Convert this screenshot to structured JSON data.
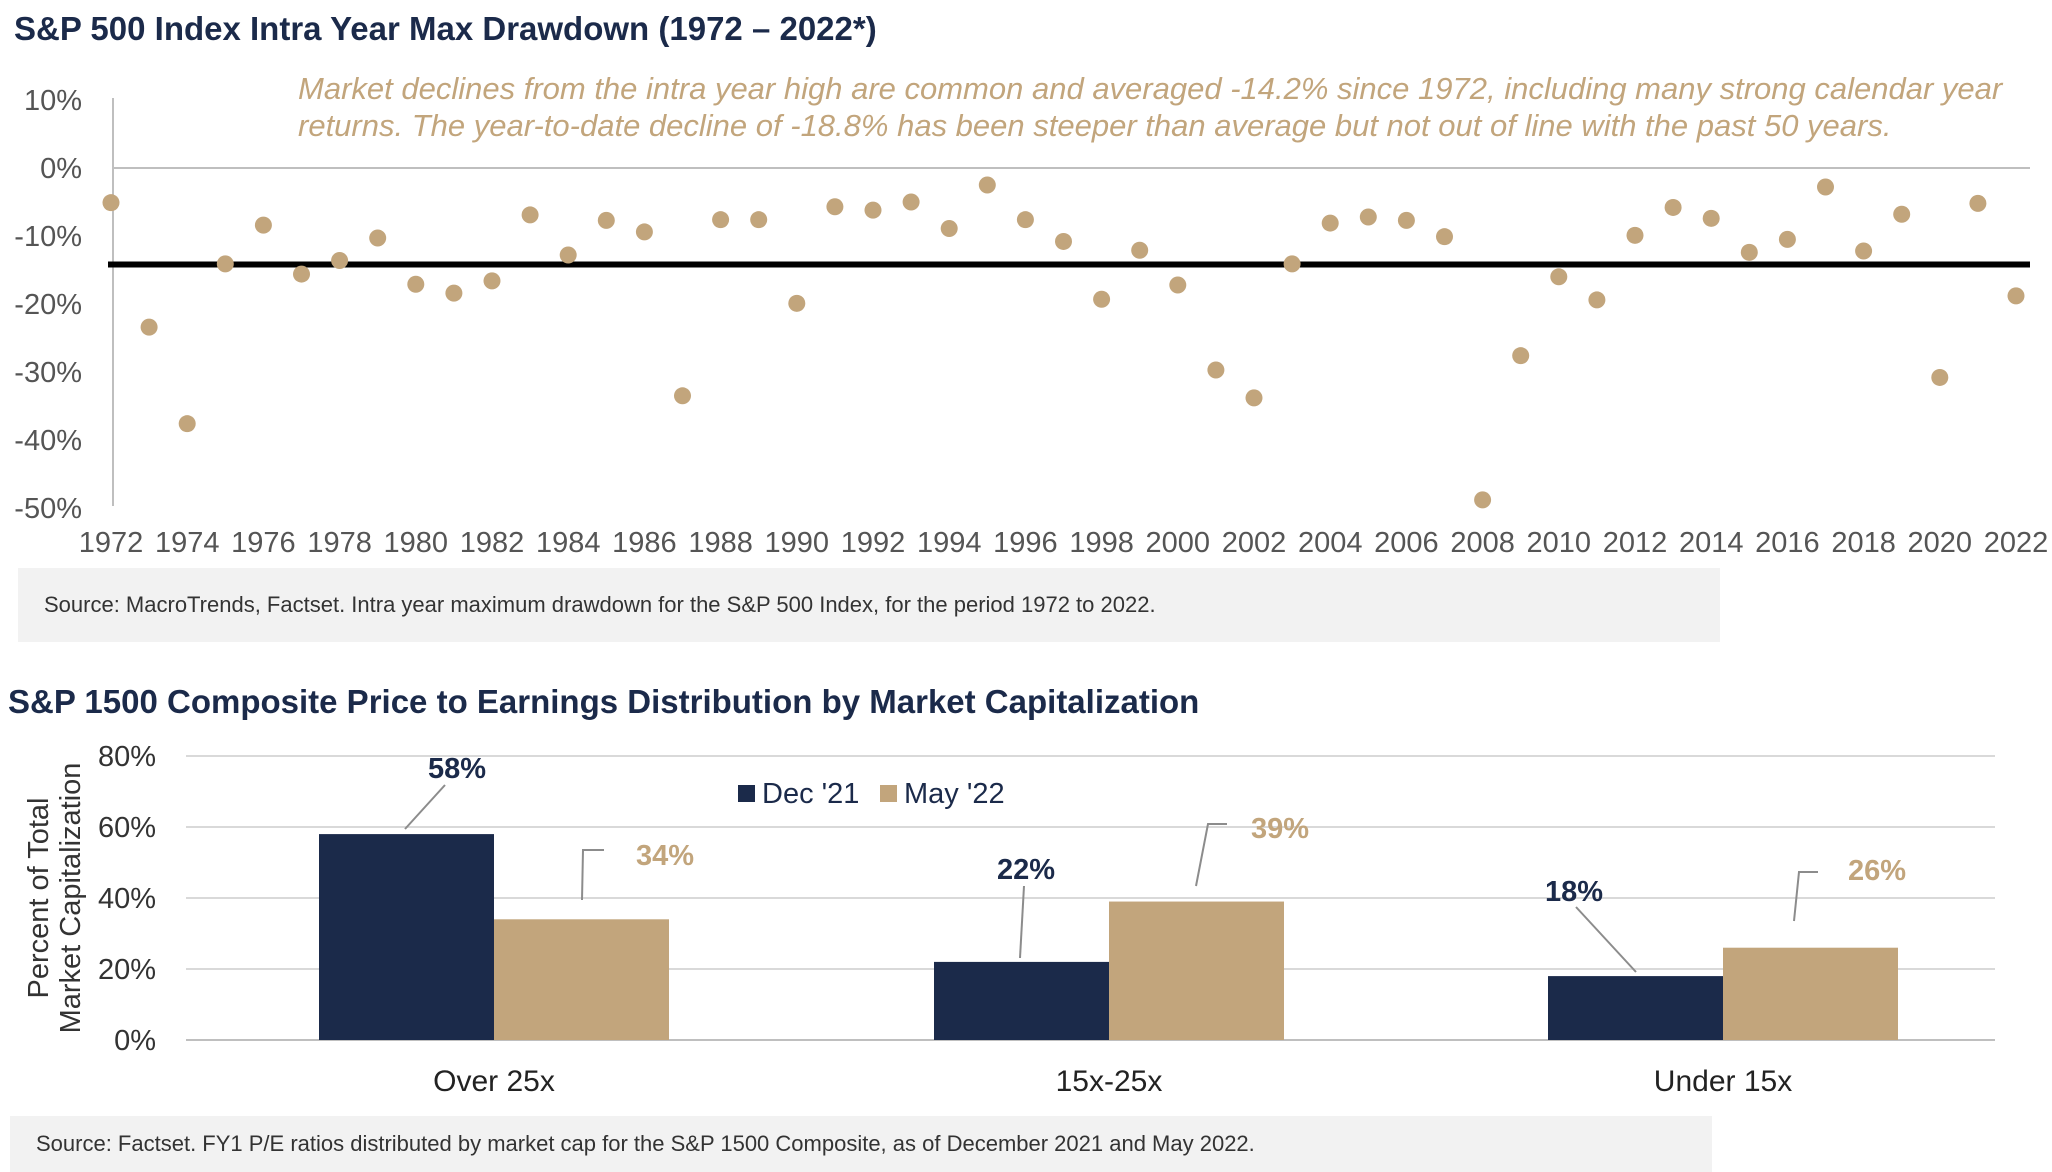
{
  "chart_data": [
    {
      "type": "scatter",
      "title": "S&P 500 Index Intra Year Max Drawdown (1972 – 2022*)",
      "annotation": "Market declines from the intra year high are common and averaged -14.2% since 1972, including many strong calendar year returns. The year-to-date decline of -18.8% has been steeper than average but not out of line with the past 50 years.",
      "average_line": -14.2,
      "ylim": [
        -50,
        10
      ],
      "y_ticks": [
        "10%",
        "0%",
        "-10%",
        "-20%",
        "-30%",
        "-40%",
        "-50%"
      ],
      "x_ticks": [
        "1972",
        "1974",
        "1976",
        "1978",
        "1980",
        "1982",
        "1984",
        "1986",
        "1988",
        "1990",
        "1992",
        "1994",
        "1996",
        "1998",
        "2000",
        "2002",
        "2004",
        "2006",
        "2008",
        "2010",
        "2012",
        "2014",
        "2016",
        "2018",
        "2020",
        "2022"
      ],
      "x": [
        1972,
        1973,
        1974,
        1975,
        1976,
        1977,
        1978,
        1979,
        1980,
        1981,
        1982,
        1983,
        1984,
        1985,
        1986,
        1987,
        1988,
        1989,
        1990,
        1991,
        1992,
        1993,
        1994,
        1995,
        1996,
        1997,
        1998,
        1999,
        2000,
        2001,
        2002,
        2003,
        2004,
        2005,
        2006,
        2007,
        2008,
        2009,
        2010,
        2011,
        2012,
        2013,
        2014,
        2015,
        2016,
        2017,
        2018,
        2019,
        2020,
        2021,
        2022
      ],
      "y": [
        -5.1,
        -23.4,
        -37.6,
        -14.1,
        -8.4,
        -15.6,
        -13.6,
        -10.3,
        -17.1,
        -18.4,
        -16.6,
        -6.9,
        -12.8,
        -7.7,
        -9.4,
        -33.5,
        -7.6,
        -7.6,
        -19.9,
        -5.7,
        -6.2,
        -5.0,
        -8.9,
        -2.5,
        -7.6,
        -10.8,
        -19.3,
        -12.1,
        -17.2,
        -29.7,
        -33.8,
        -14.1,
        -8.1,
        -7.2,
        -7.7,
        -10.1,
        -48.8,
        -27.6,
        -16.0,
        -19.4,
        -9.9,
        -5.8,
        -7.4,
        -12.4,
        -10.5,
        -2.8,
        -12.2,
        -6.8,
        -30.8,
        -5.2,
        -18.8
      ],
      "color": "#c2a57c",
      "source": "Source: MacroTrends, Factset. Intra year maximum drawdown for the S&P 500 Index, for the period 1972 to 2022."
    },
    {
      "type": "bar",
      "title": "S&P 1500 Composite Price to Earnings Distribution by Market Capitalization",
      "ylabel": "Percent of Total Market Capitalization",
      "ylim": [
        0,
        80
      ],
      "y_ticks": [
        "80%",
        "60%",
        "40%",
        "20%",
        "0%"
      ],
      "categories": [
        "Over 25x",
        "15x-25x",
        "Under 15x"
      ],
      "series": [
        {
          "name": "Dec '21",
          "values": [
            58,
            22,
            18
          ],
          "labels": [
            "58%",
            "22%",
            "18%"
          ],
          "color": "#1b2a4a"
        },
        {
          "name": "May '22",
          "values": [
            34,
            39,
            26
          ],
          "labels": [
            "34%",
            "39%",
            "26%"
          ],
          "color": "#c2a57c"
        }
      ],
      "legend": "top-center",
      "source": "Source: Factset. FY1 P/E ratios distributed by market cap for the S&P 1500 Composite, as of December 2021 and May 2022."
    }
  ]
}
